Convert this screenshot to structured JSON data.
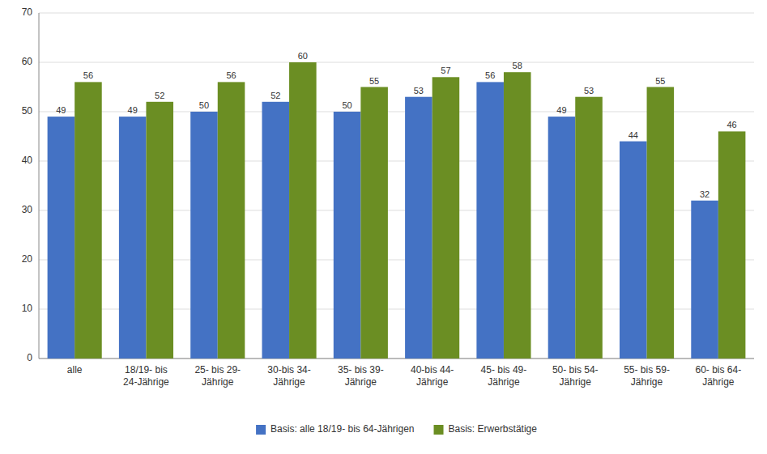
{
  "chart_data": {
    "type": "bar",
    "categories": [
      "alle",
      "18/19- bis\n24-Jährige",
      "25- bis 29-\nJährige",
      "30-bis 34-\nJährige",
      "35- bis 39-\nJährige",
      "40-bis 44-\nJährige",
      "45- bis 49-\nJährige",
      "50- bis 54-\nJährige",
      "55- bis 59-\nJährige",
      "60- bis 64-\nJährige"
    ],
    "series": [
      {
        "name": "Basis: alle 18/19- bis 64-Jährigen",
        "color": "#4472C4",
        "values": [
          49,
          49,
          50,
          52,
          50,
          53,
          56,
          49,
          44,
          32
        ]
      },
      {
        "name": "Basis: Erwerbstätige",
        "color": "#6B8E23",
        "values": [
          56,
          52,
          56,
          60,
          55,
          57,
          58,
          53,
          55,
          46
        ]
      }
    ],
    "ylim": [
      0,
      70
    ],
    "yticks": [
      0,
      10,
      20,
      30,
      40,
      50,
      60,
      70
    ],
    "grid": true,
    "legend": "bottom",
    "data_labels": true
  }
}
